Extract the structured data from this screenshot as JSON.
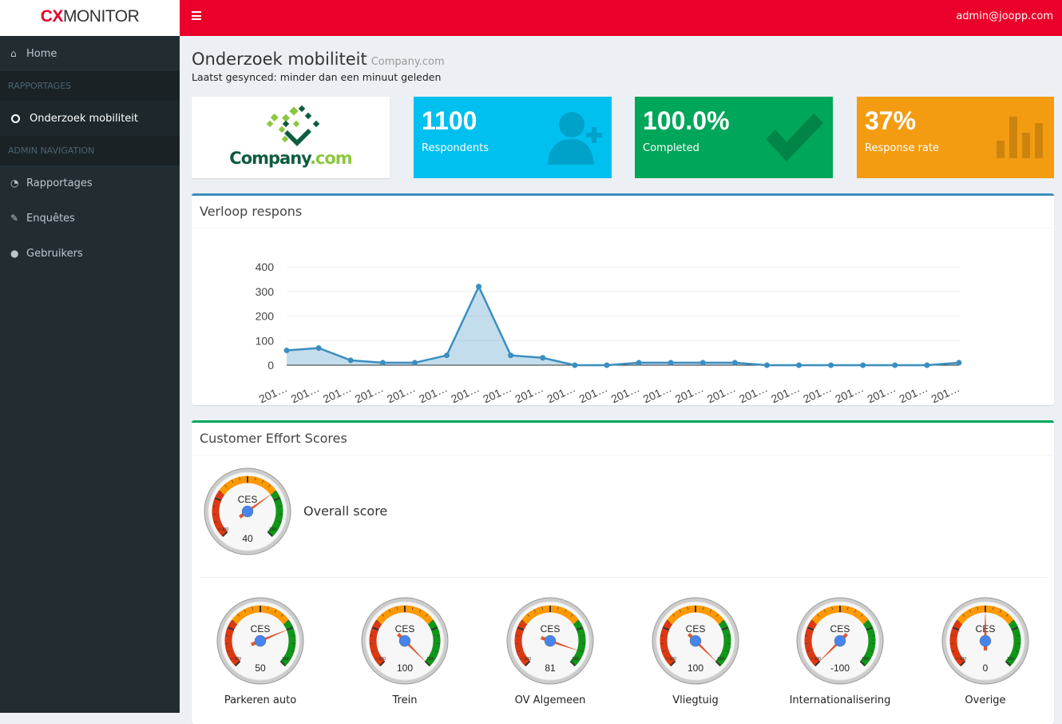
{
  "brand": {
    "part1": "CX",
    "part2": "MONITOR"
  },
  "header": {
    "user": "admin@joopp.com",
    "menu_icon": "hamburger-icon"
  },
  "sidebar": {
    "home": "Home",
    "section1": "RAPPORTAGES",
    "active": "Onderzoek mobiliteit",
    "section2": "ADMIN NAVIGATION",
    "items": [
      {
        "label": "Rapportages",
        "icon": "dashboard-icon"
      },
      {
        "label": "Enquêtes",
        "icon": "pencil-icon"
      },
      {
        "label": "Gebruikers",
        "icon": "user-icon"
      }
    ]
  },
  "page": {
    "title": "Onderzoek mobiliteit",
    "company": "Company.com",
    "sync": "Laatst gesynced: minder dan een minuut geleden"
  },
  "company_logo": {
    "name": "Company",
    "tld": ".com"
  },
  "stats": [
    {
      "value": "1100",
      "label": "Respondents",
      "color": "#00c0ef",
      "icon": "user-plus-icon"
    },
    {
      "value": "100.0%",
      "label": "Completed",
      "color": "#00a65a",
      "icon": "check-icon"
    },
    {
      "value": "37%",
      "label": "Response rate",
      "color": "#f39c12",
      "icon": "bar-chart-icon"
    }
  ],
  "chart_data": {
    "type": "area",
    "title": "Verloop respons",
    "x": [
      "201…",
      "201…",
      "201…",
      "201…",
      "201…",
      "201…",
      "201…",
      "201…",
      "201…",
      "201…",
      "201…",
      "201…",
      "201…",
      "201…",
      "201…",
      "201…",
      "201…",
      "201…",
      "201…",
      "201…",
      "201…",
      "201…"
    ],
    "values": [
      60,
      70,
      20,
      10,
      10,
      40,
      320,
      40,
      30,
      0,
      0,
      10,
      10,
      10,
      10,
      0,
      0,
      0,
      0,
      0,
      0,
      10
    ],
    "yticks": [
      0,
      100,
      200,
      300,
      400
    ],
    "ylim": [
      0,
      400
    ],
    "grid": true,
    "color": "#3a8ec0"
  },
  "ces": {
    "title": "Customer Effort Scores",
    "gauge_label": "CES",
    "min_label": "-100",
    "max_label": "100",
    "overall": {
      "label": "Overall score",
      "value": 40
    },
    "items": [
      {
        "label": "Parkeren auto",
        "value": 50
      },
      {
        "label": "Trein",
        "value": 100
      },
      {
        "label": "OV Algemeen",
        "value": 81
      },
      {
        "label": "Vliegtuig",
        "value": 100
      },
      {
        "label": "Internationalisering",
        "value": -100
      },
      {
        "label": "Overige",
        "value": 0
      }
    ]
  }
}
